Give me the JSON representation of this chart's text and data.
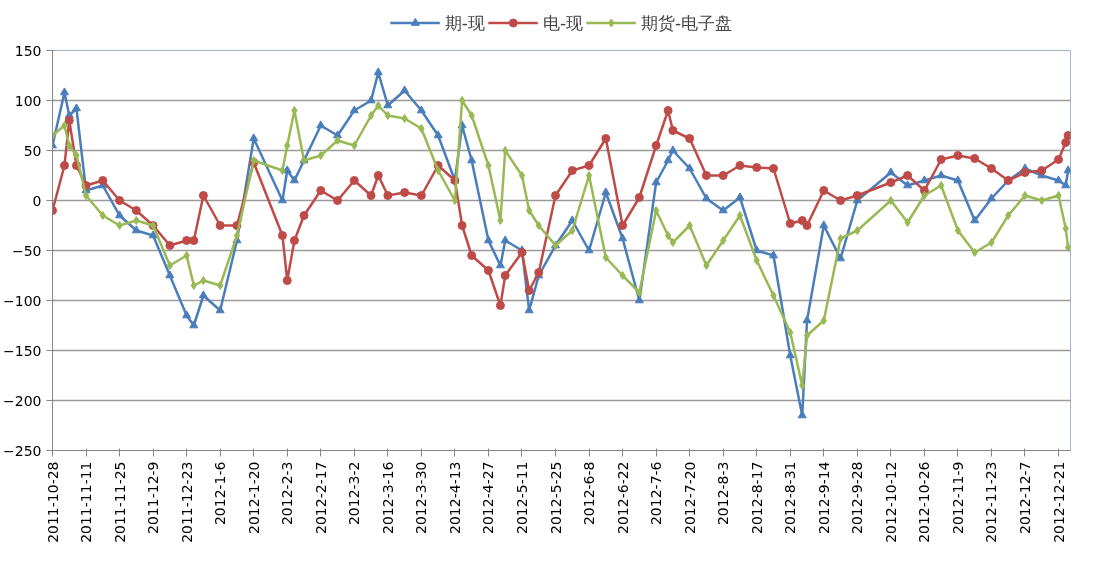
{
  "chart_data": {
    "type": "line",
    "x": [
      "2011-10-28",
      "2011-11-02",
      "2011-11-04",
      "2011-11-07",
      "2011-11-11",
      "2011-11-18",
      "2011-11-25",
      "2011-12-02",
      "2011-12-09",
      "2011-12-16",
      "2011-12-23",
      "2011-12-26",
      "2011-12-30",
      "2012-01-06",
      "2012-01-13",
      "2012-01-20",
      "2012-02-01",
      "2012-02-03",
      "2012-02-06",
      "2012-02-10",
      "2012-02-17",
      "2012-02-24",
      "2012-03-02",
      "2012-03-09",
      "2012-03-12",
      "2012-03-16",
      "2012-03-23",
      "2012-03-30",
      "2012-04-06",
      "2012-04-13",
      "2012-04-16",
      "2012-04-20",
      "2012-04-27",
      "2012-05-02",
      "2012-05-04",
      "2012-05-11",
      "2012-05-14",
      "2012-05-18",
      "2012-05-25",
      "2012-06-01",
      "2012-06-08",
      "2012-06-15",
      "2012-06-22",
      "2012-06-29",
      "2012-07-06",
      "2012-07-11",
      "2012-07-13",
      "2012-07-20",
      "2012-07-27",
      "2012-08-03",
      "2012-08-10",
      "2012-08-17",
      "2012-08-24",
      "2012-08-31",
      "2012-09-05",
      "2012-09-07",
      "2012-09-14",
      "2012-09-21",
      "2012-09-28",
      "2012-10-12",
      "2012-10-19",
      "2012-10-26",
      "2012-11-02",
      "2012-11-09",
      "2012-11-16",
      "2012-11-23",
      "2012-11-30",
      "2012-12-07",
      "2012-12-14",
      "2012-12-21",
      "2012-12-24",
      "2012-12-25"
    ],
    "series": [
      {
        "name": "期-现",
        "color": "#4a7ebb",
        "marker": "triangle",
        "values": [
          55,
          108,
          85,
          92,
          10,
          15,
          -15,
          -30,
          -35,
          -75,
          -115,
          -125,
          -95,
          -110,
          -40,
          62,
          0,
          30,
          20,
          40,
          75,
          65,
          90,
          100,
          128,
          95,
          110,
          90,
          65,
          20,
          75,
          40,
          -40,
          -65,
          -40,
          -50,
          -110,
          -75,
          -45,
          -20,
          -50,
          8,
          -38,
          -100,
          18,
          40,
          50,
          32,
          2,
          -10,
          3,
          -50,
          -55,
          -155,
          -215,
          -120,
          -25,
          -58,
          0,
          28,
          15,
          20,
          25,
          20,
          -20,
          2,
          20,
          32,
          25,
          20,
          15,
          30
        ]
      },
      {
        "name": "电-现",
        "color": "#be4b48",
        "marker": "circle",
        "values": [
          -10,
          35,
          80,
          35,
          15,
          20,
          0,
          -10,
          -25,
          -45,
          -40,
          -40,
          5,
          -25,
          -25,
          38,
          -35,
          -80,
          -40,
          -15,
          10,
          0,
          20,
          5,
          25,
          5,
          8,
          5,
          35,
          20,
          -25,
          -55,
          -70,
          -105,
          -75,
          -52,
          -90,
          -72,
          5,
          30,
          35,
          62,
          -25,
          3,
          55,
          90,
          70,
          62,
          25,
          25,
          35,
          33,
          32,
          -23,
          -20,
          -25,
          10,
          0,
          5,
          18,
          25,
          10,
          41,
          45,
          42,
          32,
          20,
          28,
          30,
          41,
          58,
          65
        ]
      },
      {
        "name": "期货-电子盘",
        "color": "#98b954",
        "marker": "diamond",
        "values": [
          65,
          75,
          55,
          45,
          5,
          -15,
          -25,
          -20,
          -25,
          -65,
          -55,
          -85,
          -80,
          -85,
          -35,
          40,
          30,
          55,
          90,
          40,
          45,
          60,
          55,
          85,
          95,
          85,
          82,
          72,
          30,
          0,
          100,
          85,
          35,
          -20,
          50,
          25,
          -10,
          -25,
          -45,
          -30,
          25,
          -57,
          -75,
          -92,
          -10,
          -35,
          -42,
          -25,
          -65,
          -40,
          -15,
          -60,
          -95,
          -132,
          -185,
          -135,
          -120,
          -38,
          -30,
          0,
          -22,
          5,
          15,
          -30,
          -52,
          -42,
          -15,
          5,
          0,
          5,
          -28,
          -47
        ]
      }
    ],
    "xlim": [
      "2011-10-28",
      "2012-12-26"
    ],
    "xticks": [
      {
        "value": "2011-10-28",
        "label": "2011-10-28"
      },
      {
        "value": "2011-11-11",
        "label": "2011-11-11"
      },
      {
        "value": "2011-11-25",
        "label": "2011-11-25"
      },
      {
        "value": "2011-12-09",
        "label": "2011-12-9"
      },
      {
        "value": "2011-12-23",
        "label": "2011-12-23"
      },
      {
        "value": "2012-01-06",
        "label": "2012-1-6"
      },
      {
        "value": "2012-01-20",
        "label": "2012-1-20"
      },
      {
        "value": "2012-02-03",
        "label": "2012-2-3"
      },
      {
        "value": "2012-02-17",
        "label": "2012-2-17"
      },
      {
        "value": "2012-03-02",
        "label": "2012-3-2"
      },
      {
        "value": "2012-03-16",
        "label": "2012-3-16"
      },
      {
        "value": "2012-03-30",
        "label": "2012-3-30"
      },
      {
        "value": "2012-04-13",
        "label": "2012-4-13"
      },
      {
        "value": "2012-04-27",
        "label": "2012-4-27"
      },
      {
        "value": "2012-05-11",
        "label": "2012-5-11"
      },
      {
        "value": "2012-05-25",
        "label": "2012-5-25"
      },
      {
        "value": "2012-06-08",
        "label": "2012-6-8"
      },
      {
        "value": "2012-06-22",
        "label": "2012-6-22"
      },
      {
        "value": "2012-07-06",
        "label": "2012-7-6"
      },
      {
        "value": "2012-07-20",
        "label": "2012-7-20"
      },
      {
        "value": "2012-08-03",
        "label": "2012-8-3"
      },
      {
        "value": "2012-08-17",
        "label": "2012-8-17"
      },
      {
        "value": "2012-08-31",
        "label": "2012-8-31"
      },
      {
        "value": "2012-09-14",
        "label": "2012-9-14"
      },
      {
        "value": "2012-09-28",
        "label": "2012-9-28"
      },
      {
        "value": "2012-10-12",
        "label": "2012-10-12"
      },
      {
        "value": "2012-10-26",
        "label": "2012-10-26"
      },
      {
        "value": "2012-11-09",
        "label": "2012-11-9"
      },
      {
        "value": "2012-11-23",
        "label": "2012-11-23"
      },
      {
        "value": "2012-12-07",
        "label": "2012-12-7"
      },
      {
        "value": "2012-12-21",
        "label": "2012-12-21"
      }
    ],
    "ylim": [
      -250,
      150
    ],
    "yticks": [
      -250,
      -200,
      -150,
      -100,
      -50,
      0,
      50,
      100,
      150
    ],
    "grid": "y",
    "legend": "top"
  }
}
